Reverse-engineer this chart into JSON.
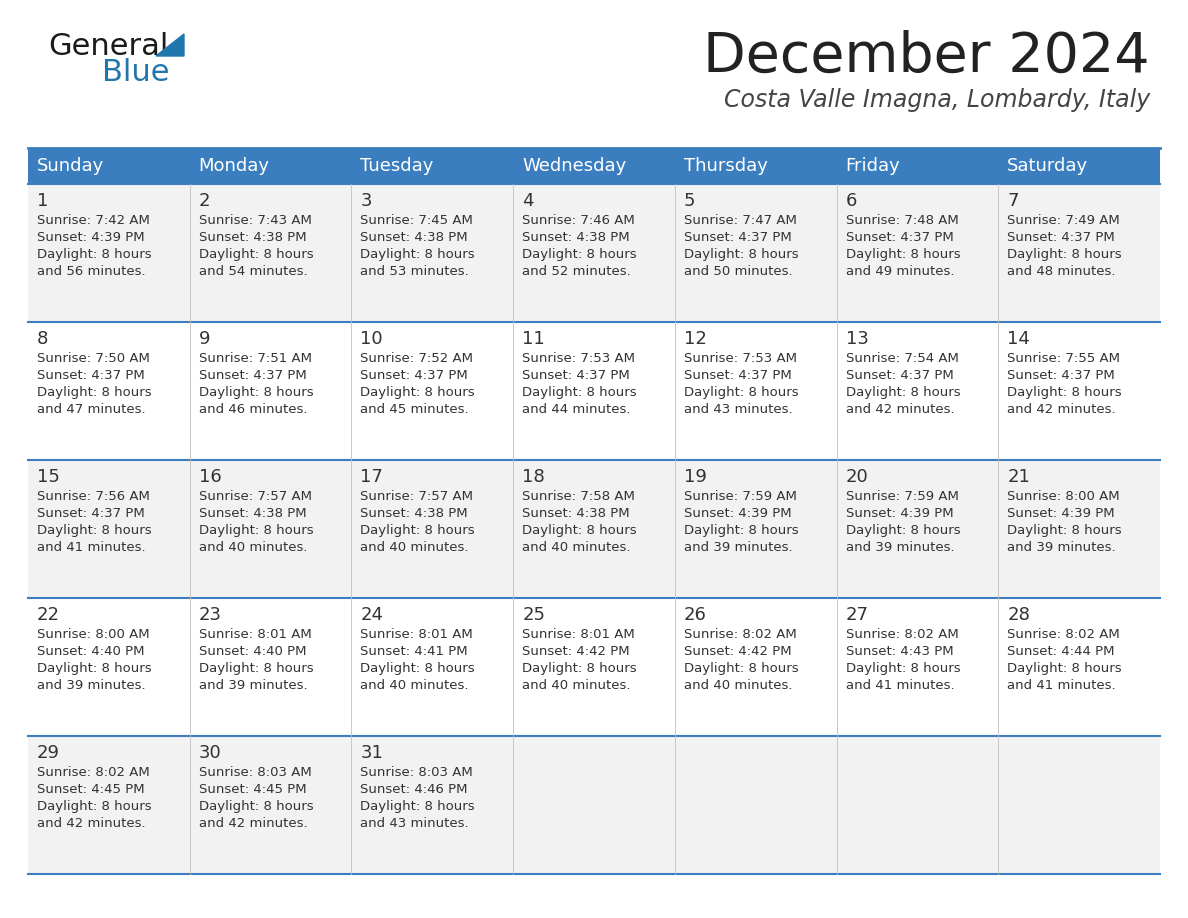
{
  "title": "December 2024",
  "subtitle": "Costa Valle Imagna, Lombardy, Italy",
  "header_bg_color": "#3a7ebf",
  "header_text_color": "#ffffff",
  "row_bg_color_1": "#f2f2f2",
  "row_bg_color_2": "#ffffff",
  "border_color": "#3a7ebf",
  "text_color": "#333333",
  "days_of_week": [
    "Sunday",
    "Monday",
    "Tuesday",
    "Wednesday",
    "Thursday",
    "Friday",
    "Saturday"
  ],
  "calendar_data": [
    [
      {
        "day": "1",
        "sunrise": "7:42 AM",
        "sunset": "4:39 PM",
        "daylight_line1": "Daylight: 8 hours",
        "daylight_line2": "and 56 minutes."
      },
      {
        "day": "2",
        "sunrise": "7:43 AM",
        "sunset": "4:38 PM",
        "daylight_line1": "Daylight: 8 hours",
        "daylight_line2": "and 54 minutes."
      },
      {
        "day": "3",
        "sunrise": "7:45 AM",
        "sunset": "4:38 PM",
        "daylight_line1": "Daylight: 8 hours",
        "daylight_line2": "and 53 minutes."
      },
      {
        "day": "4",
        "sunrise": "7:46 AM",
        "sunset": "4:38 PM",
        "daylight_line1": "Daylight: 8 hours",
        "daylight_line2": "and 52 minutes."
      },
      {
        "day": "5",
        "sunrise": "7:47 AM",
        "sunset": "4:37 PM",
        "daylight_line1": "Daylight: 8 hours",
        "daylight_line2": "and 50 minutes."
      },
      {
        "day": "6",
        "sunrise": "7:48 AM",
        "sunset": "4:37 PM",
        "daylight_line1": "Daylight: 8 hours",
        "daylight_line2": "and 49 minutes."
      },
      {
        "day": "7",
        "sunrise": "7:49 AM",
        "sunset": "4:37 PM",
        "daylight_line1": "Daylight: 8 hours",
        "daylight_line2": "and 48 minutes."
      }
    ],
    [
      {
        "day": "8",
        "sunrise": "7:50 AM",
        "sunset": "4:37 PM",
        "daylight_line1": "Daylight: 8 hours",
        "daylight_line2": "and 47 minutes."
      },
      {
        "day": "9",
        "sunrise": "7:51 AM",
        "sunset": "4:37 PM",
        "daylight_line1": "Daylight: 8 hours",
        "daylight_line2": "and 46 minutes."
      },
      {
        "day": "10",
        "sunrise": "7:52 AM",
        "sunset": "4:37 PM",
        "daylight_line1": "Daylight: 8 hours",
        "daylight_line2": "and 45 minutes."
      },
      {
        "day": "11",
        "sunrise": "7:53 AM",
        "sunset": "4:37 PM",
        "daylight_line1": "Daylight: 8 hours",
        "daylight_line2": "and 44 minutes."
      },
      {
        "day": "12",
        "sunrise": "7:53 AM",
        "sunset": "4:37 PM",
        "daylight_line1": "Daylight: 8 hours",
        "daylight_line2": "and 43 minutes."
      },
      {
        "day": "13",
        "sunrise": "7:54 AM",
        "sunset": "4:37 PM",
        "daylight_line1": "Daylight: 8 hours",
        "daylight_line2": "and 42 minutes."
      },
      {
        "day": "14",
        "sunrise": "7:55 AM",
        "sunset": "4:37 PM",
        "daylight_line1": "Daylight: 8 hours",
        "daylight_line2": "and 42 minutes."
      }
    ],
    [
      {
        "day": "15",
        "sunrise": "7:56 AM",
        "sunset": "4:37 PM",
        "daylight_line1": "Daylight: 8 hours",
        "daylight_line2": "and 41 minutes."
      },
      {
        "day": "16",
        "sunrise": "7:57 AM",
        "sunset": "4:38 PM",
        "daylight_line1": "Daylight: 8 hours",
        "daylight_line2": "and 40 minutes."
      },
      {
        "day": "17",
        "sunrise": "7:57 AM",
        "sunset": "4:38 PM",
        "daylight_line1": "Daylight: 8 hours",
        "daylight_line2": "and 40 minutes."
      },
      {
        "day": "18",
        "sunrise": "7:58 AM",
        "sunset": "4:38 PM",
        "daylight_line1": "Daylight: 8 hours",
        "daylight_line2": "and 40 minutes."
      },
      {
        "day": "19",
        "sunrise": "7:59 AM",
        "sunset": "4:39 PM",
        "daylight_line1": "Daylight: 8 hours",
        "daylight_line2": "and 39 minutes."
      },
      {
        "day": "20",
        "sunrise": "7:59 AM",
        "sunset": "4:39 PM",
        "daylight_line1": "Daylight: 8 hours",
        "daylight_line2": "and 39 minutes."
      },
      {
        "day": "21",
        "sunrise": "8:00 AM",
        "sunset": "4:39 PM",
        "daylight_line1": "Daylight: 8 hours",
        "daylight_line2": "and 39 minutes."
      }
    ],
    [
      {
        "day": "22",
        "sunrise": "8:00 AM",
        "sunset": "4:40 PM",
        "daylight_line1": "Daylight: 8 hours",
        "daylight_line2": "and 39 minutes."
      },
      {
        "day": "23",
        "sunrise": "8:01 AM",
        "sunset": "4:40 PM",
        "daylight_line1": "Daylight: 8 hours",
        "daylight_line2": "and 39 minutes."
      },
      {
        "day": "24",
        "sunrise": "8:01 AM",
        "sunset": "4:41 PM",
        "daylight_line1": "Daylight: 8 hours",
        "daylight_line2": "and 40 minutes."
      },
      {
        "day": "25",
        "sunrise": "8:01 AM",
        "sunset": "4:42 PM",
        "daylight_line1": "Daylight: 8 hours",
        "daylight_line2": "and 40 minutes."
      },
      {
        "day": "26",
        "sunrise": "8:02 AM",
        "sunset": "4:42 PM",
        "daylight_line1": "Daylight: 8 hours",
        "daylight_line2": "and 40 minutes."
      },
      {
        "day": "27",
        "sunrise": "8:02 AM",
        "sunset": "4:43 PM",
        "daylight_line1": "Daylight: 8 hours",
        "daylight_line2": "and 41 minutes."
      },
      {
        "day": "28",
        "sunrise": "8:02 AM",
        "sunset": "4:44 PM",
        "daylight_line1": "Daylight: 8 hours",
        "daylight_line2": "and 41 minutes."
      }
    ],
    [
      {
        "day": "29",
        "sunrise": "8:02 AM",
        "sunset": "4:45 PM",
        "daylight_line1": "Daylight: 8 hours",
        "daylight_line2": "and 42 minutes."
      },
      {
        "day": "30",
        "sunrise": "8:03 AM",
        "sunset": "4:45 PM",
        "daylight_line1": "Daylight: 8 hours",
        "daylight_line2": "and 42 minutes."
      },
      {
        "day": "31",
        "sunrise": "8:03 AM",
        "sunset": "4:46 PM",
        "daylight_line1": "Daylight: 8 hours",
        "daylight_line2": "and 43 minutes."
      },
      null,
      null,
      null,
      null
    ]
  ],
  "logo_color_general": "#1a1a1a",
  "logo_color_blue": "#2176ae",
  "logo_triangle_color": "#2176ae",
  "fig_width": 11.88,
  "fig_height": 9.18,
  "dpi": 100
}
